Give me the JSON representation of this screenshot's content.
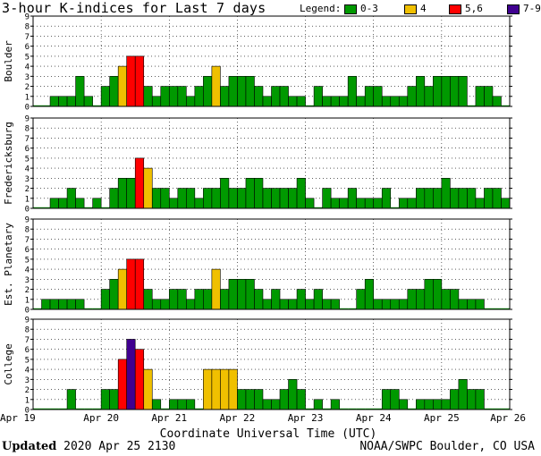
{
  "title": "3-hour K-indices for Last 7 days",
  "legend": {
    "label": "Legend:",
    "items": [
      {
        "label": "0-3",
        "color": "#009900"
      },
      {
        "label": "4",
        "color": "#f0c000"
      },
      {
        "label": "5,6",
        "color": "#ff0000"
      },
      {
        "label": "7-9",
        "color": "#400090"
      }
    ]
  },
  "chart_data": {
    "type": "bar",
    "xlabel": "Coordinate Universal Time (UTC)",
    "x_tick_labels": [
      "Apr 19",
      "Apr 20",
      "Apr 21",
      "Apr 22",
      "Apr 23",
      "Apr 24",
      "Apr 25",
      "Apr 26"
    ],
    "y_tick_labels": [
      "0",
      "1",
      "2",
      "3",
      "4",
      "5",
      "6",
      "7",
      "8",
      "9"
    ],
    "ylim": [
      0,
      9
    ],
    "intervals_per_day": 8,
    "series": [
      {
        "name": "Boulder",
        "values": [
          0,
          0,
          1,
          1,
          1,
          3,
          1,
          0,
          2,
          3,
          4,
          5,
          5,
          2,
          1,
          2,
          2,
          2,
          1,
          2,
          3,
          4,
          2,
          3,
          3,
          3,
          2,
          1,
          2,
          2,
          1,
          1,
          0,
          2,
          1,
          1,
          1,
          3,
          1,
          2,
          2,
          1,
          1,
          1,
          2,
          3,
          2,
          3,
          3,
          3,
          3,
          0,
          2,
          2,
          1,
          0
        ]
      },
      {
        "name": "Fredericksburg",
        "values": [
          0,
          0,
          1,
          1,
          2,
          1,
          0,
          1,
          0,
          2,
          3,
          3,
          5,
          4,
          2,
          2,
          1,
          2,
          2,
          1,
          2,
          2,
          3,
          2,
          2,
          3,
          3,
          2,
          2,
          2,
          2,
          3,
          1,
          0,
          2,
          1,
          1,
          2,
          1,
          1,
          1,
          2,
          0,
          1,
          1,
          2,
          2,
          2,
          3,
          2,
          2,
          2,
          1,
          2,
          2,
          1
        ]
      },
      {
        "name": "Est. Planetary",
        "values": [
          0,
          1,
          1,
          1,
          1,
          1,
          0,
          0,
          2,
          3,
          4,
          5,
          5,
          2,
          1,
          1,
          2,
          2,
          1,
          2,
          2,
          4,
          2,
          3,
          3,
          3,
          2,
          1,
          2,
          1,
          1,
          2,
          1,
          2,
          1,
          1,
          0,
          0,
          2,
          3,
          1,
          1,
          1,
          1,
          2,
          2,
          3,
          3,
          2,
          2,
          1,
          1,
          1,
          0,
          0,
          0
        ]
      },
      {
        "name": "College",
        "values": [
          0,
          0,
          0,
          0,
          2,
          0,
          0,
          0,
          2,
          2,
          5,
          7,
          6,
          4,
          1,
          0,
          1,
          1,
          1,
          0,
          4,
          4,
          4,
          4,
          2,
          2,
          2,
          1,
          1,
          2,
          3,
          2,
          0,
          1,
          0,
          1,
          0,
          0,
          0,
          0,
          0,
          2,
          2,
          1,
          0,
          1,
          1,
          1,
          1,
          2,
          3,
          2,
          2,
          0,
          0,
          0
        ]
      }
    ]
  },
  "footer": {
    "updated_label": "Updated",
    "updated_value": "2020 Apr 25 2130",
    "source": "NOAA/SWPC Boulder, CO USA"
  }
}
